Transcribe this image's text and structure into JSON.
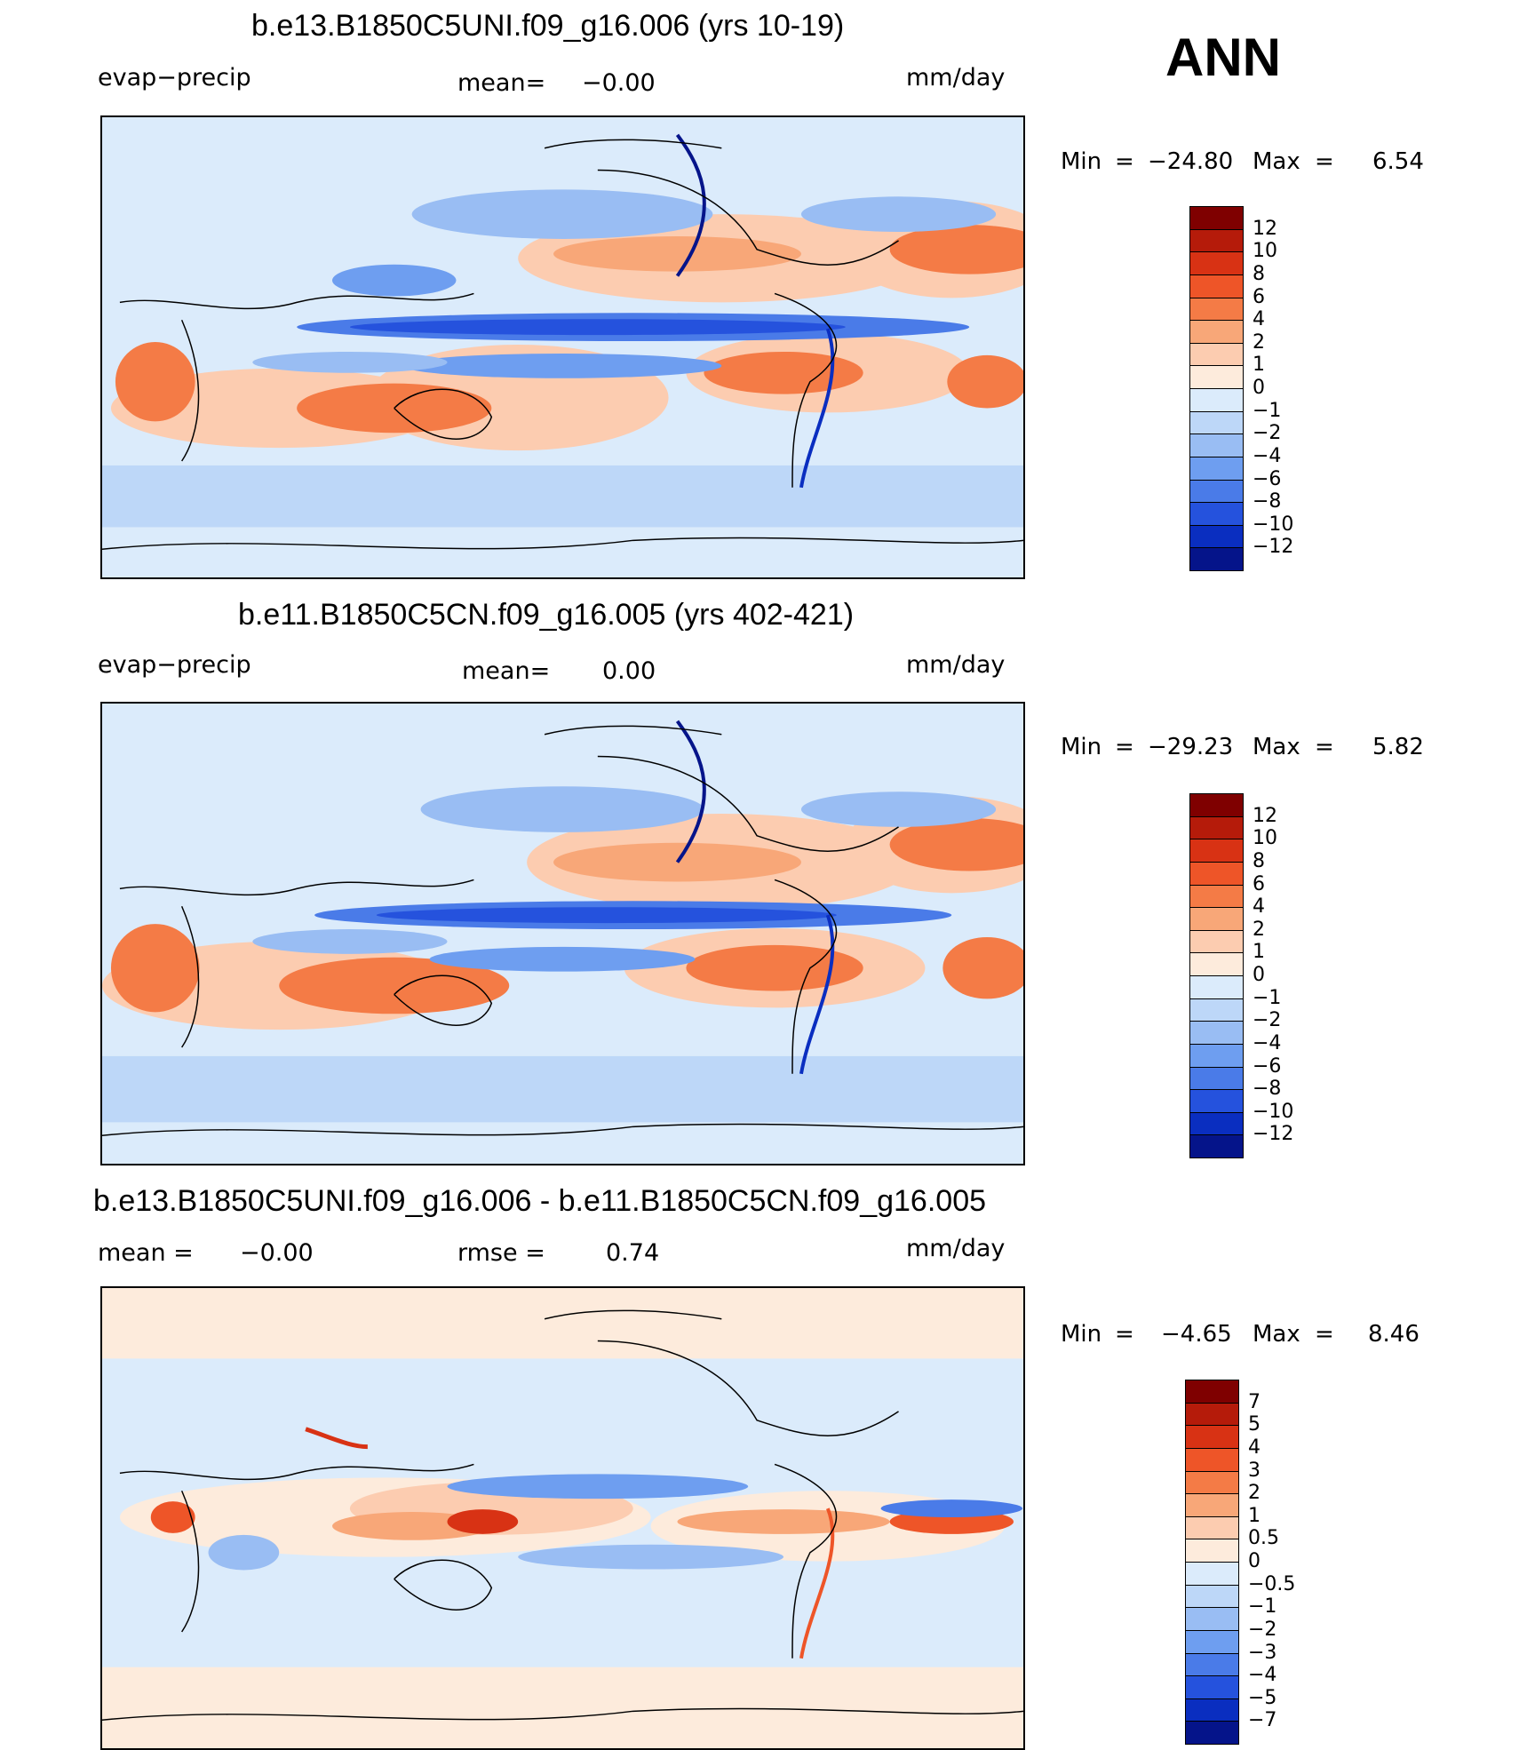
{
  "header": {
    "season": "ANN"
  },
  "chart_data": [
    {
      "type": "heatmap",
      "title": "b.e13.B1850C5UNI.f09_g16.006 (yrs 10-19)",
      "variable": "evap−precip",
      "mean_label": "mean=",
      "mean_value": "−0.00",
      "units": "mm/day",
      "min_label": "Min",
      "min_value": "−24.80",
      "max_label": "Max",
      "max_value": "6.54",
      "colorbar": [
        "12",
        "10",
        "8",
        "6",
        "4",
        "2",
        "1",
        "0",
        "−1",
        "−2",
        "−4",
        "−6",
        "−8",
        "−10",
        "−12"
      ],
      "colors": [
        "#7f0000",
        "#b51b0a",
        "#d83214",
        "#ee5528",
        "#f47b46",
        "#f8a778",
        "#fcccb0",
        "#fdebdc",
        "#dbebfb",
        "#bdd7f8",
        "#99bdf3",
        "#6e9ef0",
        "#4a7be8",
        "#2552dd",
        "#0a2ec0",
        "#05148a"
      ]
    },
    {
      "type": "heatmap",
      "title": "b.e11.B1850C5CN.f09_g16.005 (yrs 402-421)",
      "variable": "evap−precip",
      "mean_label": "mean=",
      "mean_value": "0.00",
      "units": "mm/day",
      "min_label": "Min",
      "min_value": "−29.23",
      "max_label": "Max",
      "max_value": "5.82",
      "colorbar": [
        "12",
        "10",
        "8",
        "6",
        "4",
        "2",
        "1",
        "0",
        "−1",
        "−2",
        "−4",
        "−6",
        "−8",
        "−10",
        "−12"
      ],
      "colors": [
        "#7f0000",
        "#b51b0a",
        "#d83214",
        "#ee5528",
        "#f47b46",
        "#f8a778",
        "#fcccb0",
        "#fdebdc",
        "#dbebfb",
        "#bdd7f8",
        "#99bdf3",
        "#6e9ef0",
        "#4a7be8",
        "#2552dd",
        "#0a2ec0",
        "#05148a"
      ]
    },
    {
      "type": "heatmap",
      "title": "b.e13.B1850C5UNI.f09_g16.006 - b.e11.B1850C5CN.f09_g16.005",
      "mean_label": "mean =",
      "mean_value": "−0.00",
      "rmse_label": "rmse =",
      "rmse_value": "0.74",
      "units": "mm/day",
      "min_label": "Min",
      "min_value": "−4.65",
      "max_label": "Max",
      "max_value": "8.46",
      "colorbar": [
        "7",
        "5",
        "4",
        "3",
        "2",
        "1",
        "0.5",
        "0",
        "−0.5",
        "−1",
        "−2",
        "−3",
        "−4",
        "−5",
        "−7"
      ],
      "colors": [
        "#7f0000",
        "#b51b0a",
        "#d83214",
        "#ee5528",
        "#f47b46",
        "#f8a778",
        "#fcccb0",
        "#fdebdc",
        "#dbebfb",
        "#bdd7f8",
        "#99bdf3",
        "#6e9ef0",
        "#4a7be8",
        "#2552dd",
        "#0a2ec0",
        "#05148a"
      ]
    }
  ]
}
